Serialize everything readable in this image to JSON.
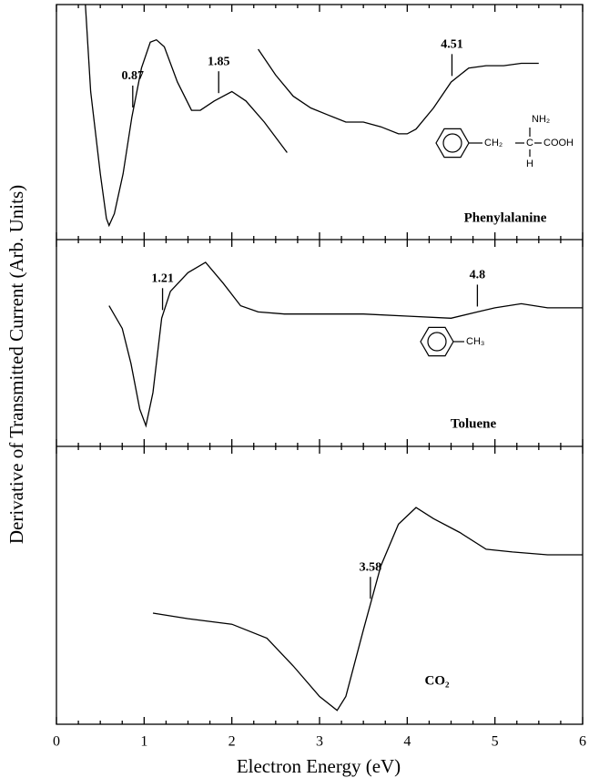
{
  "chart_data": [
    {
      "type": "line",
      "label": "Phenylalanine",
      "xlim": [
        0,
        6
      ],
      "ylim": [
        0,
        100
      ],
      "xticks": [
        0,
        1,
        2,
        3,
        4,
        5,
        6
      ],
      "xminorticks": [
        0.25,
        0.5,
        0.75,
        1.25,
        1.5,
        1.75,
        2.25,
        2.5,
        2.75,
        3.25,
        3.5,
        3.75,
        4.25,
        4.5,
        4.75,
        5.25,
        5.5,
        5.75
      ],
      "markers": [
        0.87,
        1.85,
        4.51
      ],
      "series": [
        {
          "color": "#000000",
          "x": [
            0.33,
            0.39,
            0.5,
            0.57,
            0.6,
            0.66,
            0.76,
            0.86,
            0.97,
            1.07,
            1.14,
            1.23,
            1.38,
            1.54,
            1.64,
            1.8,
            2.0,
            2.16,
            2.37,
            2.63
          ],
          "values": [
            100,
            63,
            28,
            9,
            6,
            11,
            28,
            52,
            73,
            84,
            85,
            82,
            67,
            55,
            55,
            59,
            63,
            59,
            50,
            37
          ]
        },
        {
          "color": "#000000",
          "x": [
            2.3,
            2.5,
            2.7,
            2.9,
            3.1,
            3.3,
            3.5,
            3.7,
            3.9,
            4.0,
            4.1,
            4.3,
            4.5,
            4.7,
            4.9,
            5.1,
            5.3,
            5.5
          ],
          "values": [
            81,
            70,
            61,
            56,
            53,
            50,
            50,
            48,
            45,
            45,
            47,
            56,
            67,
            73,
            74,
            74,
            75,
            75
          ]
        }
      ],
      "molecule_labels": [
        "NH₂",
        "CH₂",
        "C",
        "COOH",
        "H"
      ]
    },
    {
      "type": "line",
      "label": "Toluene",
      "xlim": [
        0,
        6
      ],
      "ylim": [
        0,
        100
      ],
      "xticks": [
        0,
        1,
        2,
        3,
        4,
        5,
        6
      ],
      "xminorticks": [
        0.25,
        0.5,
        0.75,
        1.25,
        1.5,
        1.75,
        2.25,
        2.5,
        2.75,
        3.25,
        3.5,
        3.75,
        4.25,
        4.5,
        4.75,
        5.25,
        5.5,
        5.75
      ],
      "markers": [
        1.21,
        4.8
      ],
      "series": [
        {
          "color": "#000000",
          "x": [
            0.6,
            0.75,
            0.85,
            0.95,
            1.02,
            1.1,
            1.2,
            1.3,
            1.5,
            1.7,
            1.9,
            2.1,
            2.3,
            2.6,
            3.0,
            3.5,
            4.0,
            4.5,
            4.8,
            5.0,
            5.3,
            5.6,
            6.0
          ],
          "values": [
            68,
            57,
            40,
            18,
            10,
            26,
            62,
            75,
            84,
            89,
            79,
            68,
            65,
            64,
            64,
            64,
            63,
            62,
            65,
            67,
            69,
            67,
            67
          ]
        }
      ],
      "molecule_labels": [
        "CH₃"
      ]
    },
    {
      "type": "line",
      "label": "CO₂",
      "xlim": [
        0,
        6
      ],
      "ylim": [
        0,
        100
      ],
      "xticks": [
        0,
        1,
        2,
        3,
        4,
        5,
        6
      ],
      "xminorticks": [
        0.25,
        0.5,
        0.75,
        1.25,
        1.5,
        1.75,
        2.25,
        2.5,
        2.75,
        3.25,
        3.5,
        3.75,
        4.25,
        4.5,
        4.75,
        5.25,
        5.5,
        5.75
      ],
      "markers": [
        3.58
      ],
      "series": [
        {
          "color": "#000000",
          "x": [
            1.1,
            1.5,
            2.0,
            2.4,
            2.7,
            3.0,
            3.2,
            3.3,
            3.5,
            3.7,
            3.9,
            4.1,
            4.3,
            4.6,
            4.9,
            5.2,
            5.6,
            6.0
          ],
          "values": [
            40,
            38,
            36,
            31,
            21,
            10,
            5,
            10,
            34,
            57,
            72,
            78,
            74,
            69,
            63,
            62,
            61,
            61
          ]
        }
      ],
      "molecule_labels": []
    }
  ],
  "xlabel": "Electron Energy (eV)",
  "ylabel": "Derivative of Transmitted Current (Arb. Units)"
}
